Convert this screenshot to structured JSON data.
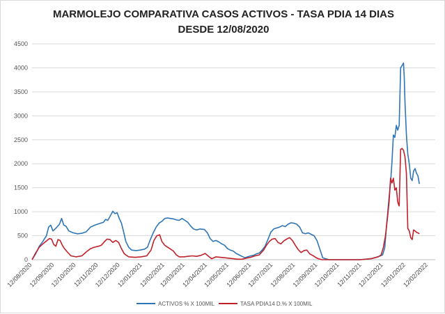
{
  "chart_data": {
    "type": "line",
    "title_lines": [
      "MARMOLEJO COMPARATIVA CASOS ACTIVOS - TASA PDIA 14 DIAS",
      "DESDE 12/08/2020"
    ],
    "xlabel": "",
    "ylabel": "",
    "ylim": [
      0,
      4500
    ],
    "yticks": [
      0,
      500,
      1000,
      1500,
      2000,
      2500,
      3000,
      3500,
      4000,
      4500
    ],
    "grid": "horizontal",
    "legend_position": "bottom",
    "x_range": [
      "12/08/2020",
      "22/02/2022"
    ],
    "x_ticks": [
      "12/08/2020",
      "12/09/2020",
      "12/10/2020",
      "12/11/2020",
      "12/12/2020",
      "12/01/2021",
      "12/02/2021",
      "12/03/2021",
      "12/04/2021",
      "12/05/2021",
      "12/06/2021",
      "12/07/2021",
      "12/08/2021",
      "12/09/2021",
      "12/10/2021",
      "12/11/2021",
      "12/12/2021",
      "12/01/2022",
      "12/02/2022"
    ],
    "series": [
      {
        "name": "ACTIVOS % X 100MIL",
        "color": "#2e75b6",
        "points": [
          [
            "12/08/2020",
            0
          ],
          [
            "17/08/2020",
            120
          ],
          [
            "22/08/2020",
            280
          ],
          [
            "27/08/2020",
            380
          ],
          [
            "01/09/2020",
            500
          ],
          [
            "04/09/2020",
            680
          ],
          [
            "07/09/2020",
            720
          ],
          [
            "10/09/2020",
            600
          ],
          [
            "13/09/2020",
            640
          ],
          [
            "16/09/2020",
            690
          ],
          [
            "19/09/2020",
            740
          ],
          [
            "22/09/2020",
            860
          ],
          [
            "25/09/2020",
            720
          ],
          [
            "28/09/2020",
            700
          ],
          [
            "02/10/2020",
            600
          ],
          [
            "08/10/2020",
            560
          ],
          [
            "14/10/2020",
            540
          ],
          [
            "20/10/2020",
            550
          ],
          [
            "26/10/2020",
            580
          ],
          [
            "01/11/2020",
            680
          ],
          [
            "07/11/2020",
            720
          ],
          [
            "13/11/2020",
            750
          ],
          [
            "19/11/2020",
            780
          ],
          [
            "22/11/2020",
            840
          ],
          [
            "25/11/2020",
            820
          ],
          [
            "28/11/2020",
            900
          ],
          [
            "02/12/2020",
            1010
          ],
          [
            "05/12/2020",
            960
          ],
          [
            "08/12/2020",
            980
          ],
          [
            "11/12/2020",
            860
          ],
          [
            "14/12/2020",
            760
          ],
          [
            "17/12/2020",
            580
          ],
          [
            "20/12/2020",
            380
          ],
          [
            "24/12/2020",
            260
          ],
          [
            "28/12/2020",
            200
          ],
          [
            "03/01/2021",
            190
          ],
          [
            "09/01/2021",
            200
          ],
          [
            "15/01/2021",
            220
          ],
          [
            "19/01/2021",
            260
          ],
          [
            "23/01/2021",
            420
          ],
          [
            "27/01/2021",
            560
          ],
          [
            "31/01/2021",
            680
          ],
          [
            "04/02/2021",
            760
          ],
          [
            "08/02/2021",
            800
          ],
          [
            "12/02/2021",
            860
          ],
          [
            "16/02/2021",
            870
          ],
          [
            "20/02/2021",
            860
          ],
          [
            "24/02/2021",
            850
          ],
          [
            "28/02/2021",
            830
          ],
          [
            "04/03/2021",
            820
          ],
          [
            "08/03/2021",
            860
          ],
          [
            "12/03/2021",
            820
          ],
          [
            "16/03/2021",
            780
          ],
          [
            "20/03/2021",
            700
          ],
          [
            "24/03/2021",
            640
          ],
          [
            "28/03/2021",
            620
          ],
          [
            "02/04/2021",
            640
          ],
          [
            "08/04/2021",
            630
          ],
          [
            "12/04/2021",
            560
          ],
          [
            "16/04/2021",
            440
          ],
          [
            "20/04/2021",
            380
          ],
          [
            "24/04/2021",
            400
          ],
          [
            "28/04/2021",
            370
          ],
          [
            "02/05/2021",
            330
          ],
          [
            "06/05/2021",
            300
          ],
          [
            "10/05/2021",
            230
          ],
          [
            "14/05/2021",
            200
          ],
          [
            "18/05/2021",
            180
          ],
          [
            "22/05/2021",
            130
          ],
          [
            "26/05/2021",
            100
          ],
          [
            "30/05/2021",
            70
          ],
          [
            "03/06/2021",
            40
          ],
          [
            "07/06/2021",
            60
          ],
          [
            "11/06/2021",
            80
          ],
          [
            "15/06/2021",
            90
          ],
          [
            "19/06/2021",
            120
          ],
          [
            "23/06/2021",
            140
          ],
          [
            "27/06/2021",
            200
          ],
          [
            "01/07/2021",
            280
          ],
          [
            "05/07/2021",
            420
          ],
          [
            "09/07/2021",
            570
          ],
          [
            "13/07/2021",
            640
          ],
          [
            "17/07/2021",
            660
          ],
          [
            "21/07/2021",
            680
          ],
          [
            "25/07/2021",
            710
          ],
          [
            "29/07/2021",
            690
          ],
          [
            "02/08/2021",
            740
          ],
          [
            "06/08/2021",
            770
          ],
          [
            "10/08/2021",
            760
          ],
          [
            "14/08/2021",
            740
          ],
          [
            "18/08/2021",
            680
          ],
          [
            "22/08/2021",
            560
          ],
          [
            "26/08/2021",
            540
          ],
          [
            "30/08/2021",
            560
          ],
          [
            "03/09/2021",
            530
          ],
          [
            "07/09/2021",
            500
          ],
          [
            "11/09/2021",
            400
          ],
          [
            "15/09/2021",
            220
          ],
          [
            "19/09/2021",
            40
          ],
          [
            "23/09/2021",
            20
          ],
          [
            "28/09/2021",
            0
          ],
          [
            "15/10/2021",
            0
          ],
          [
            "10/11/2021",
            0
          ],
          [
            "25/11/2021",
            20
          ],
          [
            "30/11/2021",
            40
          ],
          [
            "04/12/2021",
            60
          ],
          [
            "08/12/2021",
            80
          ],
          [
            "11/12/2021",
            100
          ],
          [
            "14/12/2021",
            250
          ],
          [
            "17/12/2021",
            800
          ],
          [
            "20/12/2021",
            1300
          ],
          [
            "22/12/2021",
            1600
          ],
          [
            "24/12/2021",
            2050
          ],
          [
            "26/12/2021",
            2600
          ],
          [
            "28/12/2021",
            2550
          ],
          [
            "30/12/2021",
            2800
          ],
          [
            "01/01/2022",
            2700
          ],
          [
            "03/01/2022",
            2800
          ],
          [
            "05/01/2022",
            4000
          ],
          [
            "07/01/2022",
            4050
          ],
          [
            "09/01/2022",
            4100
          ],
          [
            "10/01/2022",
            3800
          ],
          [
            "11/01/2022",
            3300
          ],
          [
            "13/01/2022",
            2600
          ],
          [
            "15/01/2022",
            2200
          ],
          [
            "17/01/2022",
            2000
          ],
          [
            "19/01/2022",
            1700
          ],
          [
            "21/01/2022",
            1650
          ],
          [
            "23/01/2022",
            1850
          ],
          [
            "25/01/2022",
            1900
          ],
          [
            "27/01/2022",
            1800
          ],
          [
            "29/01/2022",
            1750
          ],
          [
            "31/01/2022",
            1580
          ]
        ]
      },
      {
        "name": "TASA PDIA14 D.% X 100MIL",
        "color": "#c0202a",
        "points": [
          [
            "12/08/2020",
            0
          ],
          [
            "17/08/2020",
            140
          ],
          [
            "22/08/2020",
            260
          ],
          [
            "27/08/2020",
            330
          ],
          [
            "01/09/2020",
            390
          ],
          [
            "05/09/2020",
            440
          ],
          [
            "08/09/2020",
            430
          ],
          [
            "11/09/2020",
            320
          ],
          [
            "14/09/2020",
            280
          ],
          [
            "17/09/2020",
            420
          ],
          [
            "20/09/2020",
            400
          ],
          [
            "23/09/2020",
            300
          ],
          [
            "26/09/2020",
            230
          ],
          [
            "30/09/2020",
            160
          ],
          [
            "05/10/2020",
            80
          ],
          [
            "12/10/2020",
            60
          ],
          [
            "20/10/2020",
            80
          ],
          [
            "26/10/2020",
            160
          ],
          [
            "01/11/2020",
            230
          ],
          [
            "06/11/2020",
            260
          ],
          [
            "12/11/2020",
            280
          ],
          [
            "16/11/2020",
            300
          ],
          [
            "20/11/2020",
            370
          ],
          [
            "24/11/2020",
            430
          ],
          [
            "28/11/2020",
            420
          ],
          [
            "02/12/2020",
            360
          ],
          [
            "06/12/2020",
            400
          ],
          [
            "10/12/2020",
            360
          ],
          [
            "14/12/2020",
            230
          ],
          [
            "18/12/2020",
            120
          ],
          [
            "24/12/2020",
            60
          ],
          [
            "02/01/2021",
            50
          ],
          [
            "10/01/2021",
            60
          ],
          [
            "18/01/2021",
            80
          ],
          [
            "24/01/2021",
            200
          ],
          [
            "28/01/2021",
            400
          ],
          [
            "01/02/2021",
            500
          ],
          [
            "05/02/2021",
            520
          ],
          [
            "08/02/2021",
            380
          ],
          [
            "12/02/2021",
            300
          ],
          [
            "16/02/2021",
            260
          ],
          [
            "20/02/2021",
            220
          ],
          [
            "24/02/2021",
            180
          ],
          [
            "28/02/2021",
            100
          ],
          [
            "04/03/2021",
            60
          ],
          [
            "10/03/2021",
            60
          ],
          [
            "16/03/2021",
            70
          ],
          [
            "22/03/2021",
            80
          ],
          [
            "28/03/2021",
            70
          ],
          [
            "03/04/2021",
            90
          ],
          [
            "09/04/2021",
            130
          ],
          [
            "13/04/2021",
            80
          ],
          [
            "18/04/2021",
            20
          ],
          [
            "24/04/2021",
            60
          ],
          [
            "30/04/2021",
            50
          ],
          [
            "06/05/2021",
            40
          ],
          [
            "12/05/2021",
            30
          ],
          [
            "18/05/2021",
            20
          ],
          [
            "24/05/2021",
            10
          ],
          [
            "30/05/2021",
            10
          ],
          [
            "05/06/2021",
            30
          ],
          [
            "11/06/2021",
            50
          ],
          [
            "17/06/2021",
            80
          ],
          [
            "23/06/2021",
            100
          ],
          [
            "29/06/2021",
            200
          ],
          [
            "03/07/2021",
            300
          ],
          [
            "07/07/2021",
            380
          ],
          [
            "11/07/2021",
            430
          ],
          [
            "15/07/2021",
            440
          ],
          [
            "19/07/2021",
            360
          ],
          [
            "23/07/2021",
            330
          ],
          [
            "27/07/2021",
            390
          ],
          [
            "31/07/2021",
            430
          ],
          [
            "04/08/2021",
            460
          ],
          [
            "08/08/2021",
            400
          ],
          [
            "12/08/2021",
            300
          ],
          [
            "16/08/2021",
            210
          ],
          [
            "20/08/2021",
            150
          ],
          [
            "24/08/2021",
            190
          ],
          [
            "28/08/2021",
            200
          ],
          [
            "01/09/2021",
            120
          ],
          [
            "05/09/2021",
            90
          ],
          [
            "09/09/2021",
            50
          ],
          [
            "13/09/2021",
            20
          ],
          [
            "18/09/2021",
            0
          ],
          [
            "15/10/2021",
            0
          ],
          [
            "10/11/2021",
            0
          ],
          [
            "25/11/2021",
            20
          ],
          [
            "30/11/2021",
            40
          ],
          [
            "05/12/2021",
            60
          ],
          [
            "09/12/2021",
            100
          ],
          [
            "12/12/2021",
            250
          ],
          [
            "15/12/2021",
            500
          ],
          [
            "18/12/2021",
            900
          ],
          [
            "20/12/2021",
            1200
          ],
          [
            "22/12/2021",
            1700
          ],
          [
            "24/12/2021",
            1600
          ],
          [
            "26/12/2021",
            1700
          ],
          [
            "28/12/2021",
            1450
          ],
          [
            "30/12/2021",
            1500
          ],
          [
            "01/01/2022",
            1200
          ],
          [
            "03/01/2022",
            1120
          ],
          [
            "05/01/2022",
            2300
          ],
          [
            "07/01/2022",
            2320
          ],
          [
            "09/01/2022",
            2280
          ],
          [
            "11/01/2022",
            2150
          ],
          [
            "13/01/2022",
            1800
          ],
          [
            "15/01/2022",
            650
          ],
          [
            "17/01/2022",
            600
          ],
          [
            "19/01/2022",
            460
          ],
          [
            "21/01/2022",
            420
          ],
          [
            "23/01/2022",
            620
          ],
          [
            "25/01/2022",
            600
          ],
          [
            "27/01/2022",
            570
          ],
          [
            "29/01/2022",
            560
          ],
          [
            "31/01/2022",
            540
          ]
        ]
      }
    ]
  }
}
